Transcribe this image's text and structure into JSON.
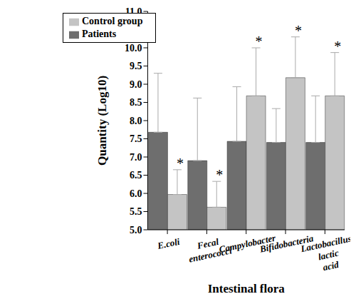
{
  "chart_data": {
    "type": "bar",
    "x_label": "Intestinal flora",
    "y_label": "Quantity (Log10)",
    "categories": [
      "E.coli",
      "Fecal enterococci",
      "Campylobacter",
      "Bifidobacteria",
      "Lactobacillus lactic acid"
    ],
    "series": [
      {
        "name": "Patients",
        "color": "#6e6e6e",
        "values": [
          7.68,
          6.9,
          7.43,
          7.4,
          7.4
        ],
        "errors": [
          1.62,
          1.72,
          1.5,
          0.93,
          1.28
        ]
      },
      {
        "name": "Control group",
        "color": "#c4c4c4",
        "values": [
          5.97,
          5.62,
          8.68,
          9.18,
          8.68
        ],
        "errors": [
          0.68,
          0.71,
          1.32,
          1.12,
          1.19
        ]
      }
    ],
    "ylim": [
      5,
      11
    ],
    "yticks": [
      {
        "value": 5,
        "label": "5.0"
      },
      {
        "value": 5.5,
        "label": "5.5"
      },
      {
        "value": 6,
        "label": "6.0"
      },
      {
        "value": 6.5,
        "label": "6.5"
      },
      {
        "value": 7,
        "label": "7.0"
      },
      {
        "value": 7.5,
        "label": "7.5"
      },
      {
        "value": 8,
        "label": "8.0"
      },
      {
        "value": 8.5,
        "label": "8.5"
      },
      {
        "value": 9,
        "label": "9.0"
      },
      {
        "value": 9.5,
        "label": "9.5"
      },
      {
        "value": 10,
        "label": "10.0"
      },
      {
        "value": 10.5,
        "label": "10.5"
      },
      {
        "value": 11,
        "label": "11.0"
      }
    ],
    "grid": false,
    "legend": "upper left",
    "annotations": [
      {
        "text": "*",
        "category": "E.coli",
        "series": "Control group"
      },
      {
        "text": "*",
        "category": "Fecal enterococci",
        "series": "Control group"
      },
      {
        "text": "*",
        "category": "Campylobacter",
        "series": "Control group"
      },
      {
        "text": "*",
        "category": "Bifidobacteria",
        "series": "Control group"
      },
      {
        "text": "*",
        "category": "Lactobacillus lactic acid",
        "series": "Control group"
      }
    ]
  }
}
